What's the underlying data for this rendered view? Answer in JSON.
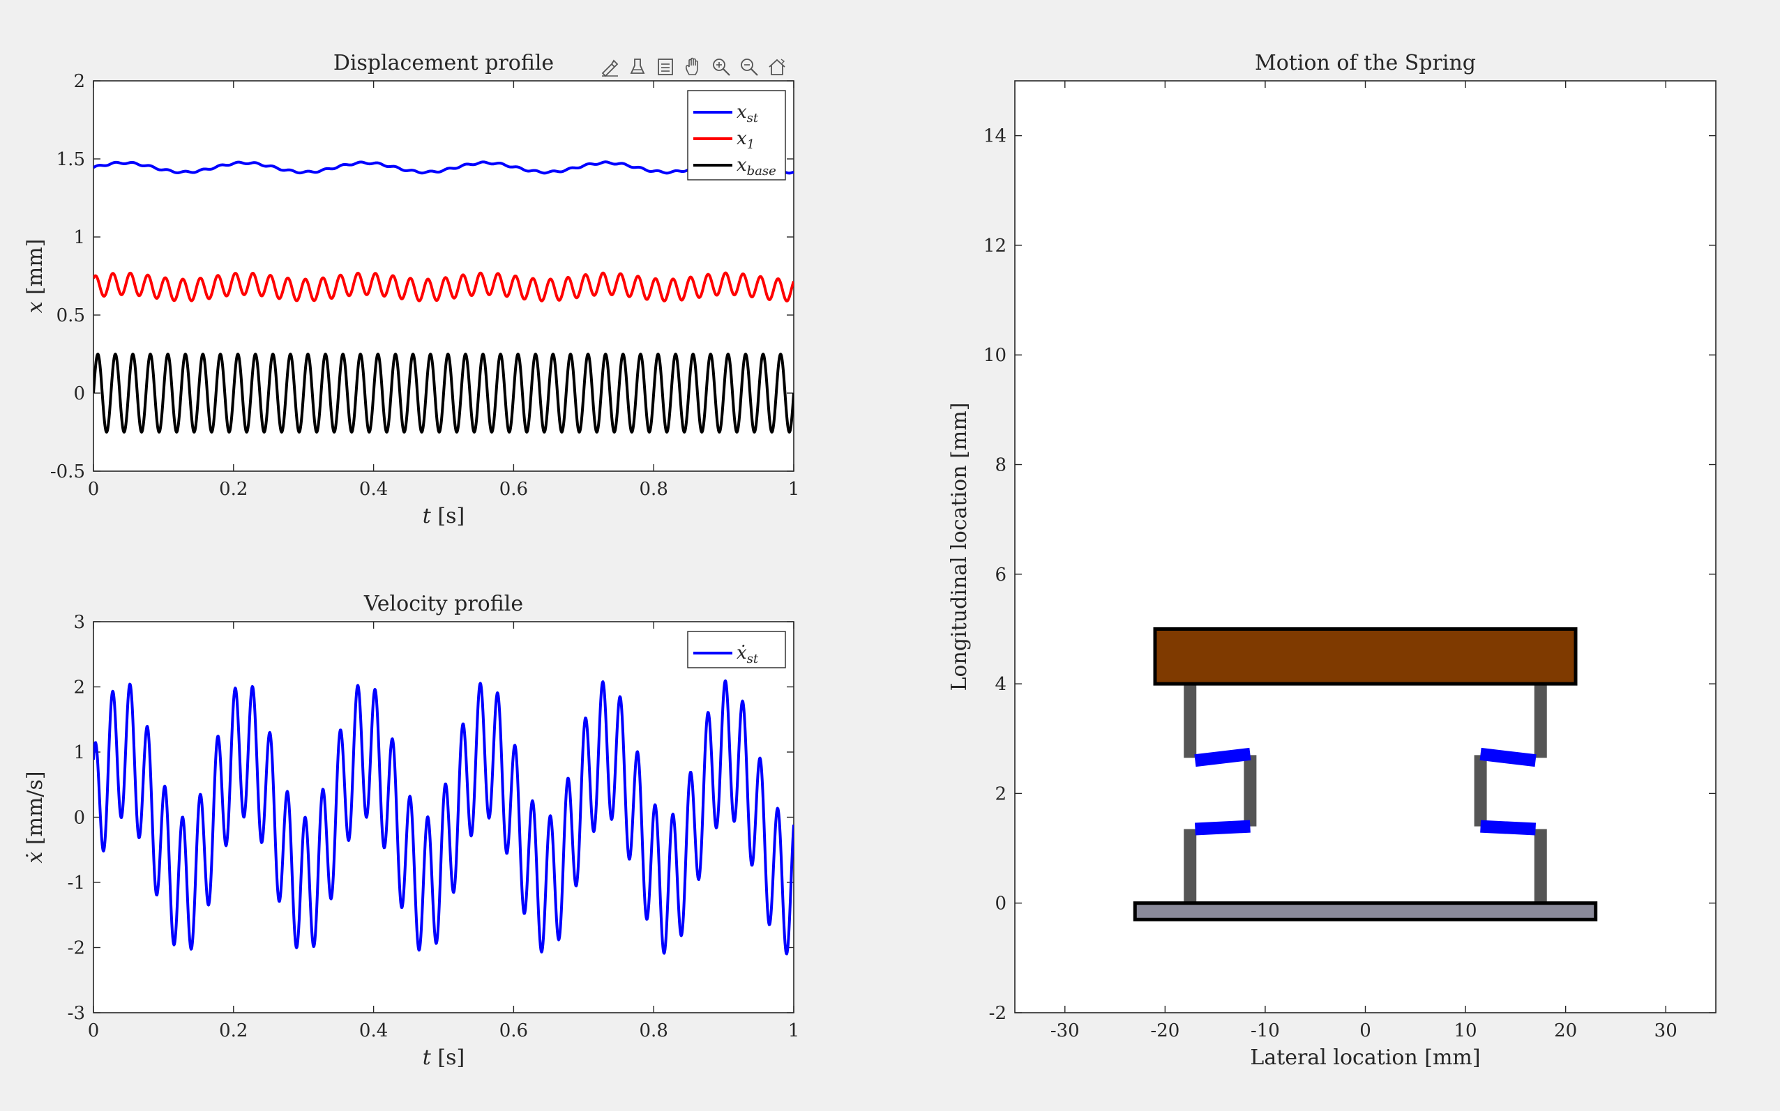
{
  "toolbar": {
    "icons": [
      "brush-icon",
      "data-tips-icon",
      "legend-icon",
      "pan-icon",
      "zoom-in-icon",
      "zoom-out-icon",
      "home-icon"
    ]
  },
  "chart_data": [
    {
      "type": "line",
      "title": "Displacement profile",
      "xlabel_var": "t",
      "xlabel_unit": "[s]",
      "ylabel_var": "x",
      "ylabel_unit": "[mm]",
      "xlim": [
        0,
        1
      ],
      "ylim": [
        -0.5,
        2
      ],
      "xticks": [
        0,
        0.2,
        0.4,
        0.6,
        0.8,
        1
      ],
      "xtick_labels": [
        "0",
        "0.2",
        "0.4",
        "0.6",
        "0.8",
        "1"
      ],
      "yticks": [
        -0.5,
        0,
        0.5,
        1,
        1.5,
        2
      ],
      "ytick_labels": [
        "-0.5",
        "0",
        "0.5",
        "1",
        "1.5",
        "2"
      ],
      "grid": false,
      "legend_position": "top-right",
      "series": [
        {
          "name_base": "x",
          "name_sub": "st",
          "color": "#0000ff",
          "model": {
            "offset": 1.445,
            "components": [
              {
                "amp": 0.03,
                "freq": 5.8,
                "phase": 0.0
              },
              {
                "amp": 0.006,
                "freq": 40,
                "phase": 0.0
              }
            ]
          }
        },
        {
          "name_base": "x",
          "name_sub": "1",
          "color": "#ff0000",
          "model": {
            "offset": 0.68,
            "components": [
              {
                "amp": 0.07,
                "freq": 40,
                "phase": 0.9
              },
              {
                "amp": 0.02,
                "freq": 5.8,
                "phase": 0.0
              }
            ]
          }
        },
        {
          "name_base": "x",
          "name_sub": "base",
          "color": "#000000",
          "model": {
            "offset": 0.0,
            "components": [
              {
                "amp": 0.25,
                "freq": 40,
                "phase": 0.0
              }
            ]
          }
        }
      ]
    },
    {
      "type": "line",
      "title": "Velocity profile",
      "xlabel_var": "t",
      "xlabel_unit": "[s]",
      "ylabel_var": "ẋ",
      "ylabel_unit": "[mm/s]",
      "xlim": [
        0,
        1
      ],
      "ylim": [
        -3,
        3
      ],
      "xticks": [
        0,
        0.2,
        0.4,
        0.6,
        0.8,
        1
      ],
      "xtick_labels": [
        "0",
        "0.2",
        "0.4",
        "0.6",
        "0.8",
        "1"
      ],
      "yticks": [
        -3,
        -2,
        -1,
        0,
        1,
        2,
        3
      ],
      "ytick_labels": [
        "-3",
        "-2",
        "-1",
        "0",
        "1",
        "2",
        "3"
      ],
      "grid": false,
      "legend_position": "top-right",
      "series": [
        {
          "name_base": "ẋ",
          "name_sub": "st",
          "color": "#0000ff",
          "model": {
            "offset": 0.0,
            "components": [
              {
                "amp": 1.05,
                "freq": 40,
                "phase": 1.0
              },
              {
                "amp": 1.05,
                "freq": 5.8,
                "phase": 0.0
              }
            ]
          }
        }
      ]
    },
    {
      "type": "diagram",
      "title": "Motion of the Spring",
      "xlabel": "Lateral location [mm]",
      "ylabel": "Longitudinal location [mm]",
      "xlim": [
        -35,
        35
      ],
      "ylim": [
        -2,
        15
      ],
      "xticks": [
        -30,
        -20,
        -10,
        0,
        10,
        20,
        30
      ],
      "xtick_labels": [
        "-30",
        "-20",
        "-10",
        "0",
        "10",
        "20",
        "30"
      ],
      "yticks": [
        -2,
        0,
        2,
        4,
        6,
        8,
        10,
        12,
        14
      ],
      "ytick_labels": [
        "-2",
        "0",
        "2",
        "4",
        "6",
        "8",
        "10",
        "12",
        "14"
      ],
      "colors": {
        "mass": "#7f3a00",
        "base": "#8a8a9a",
        "leg": "#555555",
        "spring": "#0000ff",
        "outline": "#000000"
      },
      "shapes": [
        {
          "kind": "rect",
          "role": "mass",
          "x0": -21,
          "y0": 4,
          "x1": 21,
          "y1": 5
        },
        {
          "kind": "rect",
          "role": "base",
          "x0": -23,
          "y0": -0.3,
          "x1": 23,
          "y1": 0
        },
        {
          "kind": "seg",
          "role": "leg",
          "x0": -17.5,
          "y0": 0,
          "x1": -17.5,
          "y1": 1.35
        },
        {
          "kind": "seg",
          "role": "leg",
          "x0": -17.5,
          "y0": 2.65,
          "x1": -17.5,
          "y1": 4
        },
        {
          "kind": "seg",
          "role": "leg",
          "x0": -11.5,
          "y0": 1.4,
          "x1": -11.5,
          "y1": 2.7
        },
        {
          "kind": "seg",
          "role": "leg",
          "x0": 17.5,
          "y0": 0,
          "x1": 17.5,
          "y1": 1.35
        },
        {
          "kind": "seg",
          "role": "leg",
          "x0": 17.5,
          "y0": 2.65,
          "x1": 17.5,
          "y1": 4
        },
        {
          "kind": "seg",
          "role": "leg",
          "x0": 11.5,
          "y0": 1.4,
          "x1": 11.5,
          "y1": 2.7
        },
        {
          "kind": "seg",
          "role": "spring",
          "x0": -17,
          "y0": 1.35,
          "x1": -11.5,
          "y1": 1.4
        },
        {
          "kind": "seg",
          "role": "spring",
          "x0": -17,
          "y0": 2.6,
          "x1": -11.5,
          "y1": 2.72
        },
        {
          "kind": "seg",
          "role": "spring",
          "x0": 11.5,
          "y0": 1.4,
          "x1": 17,
          "y1": 1.35
        },
        {
          "kind": "seg",
          "role": "spring",
          "x0": 11.5,
          "y0": 2.72,
          "x1": 17,
          "y1": 2.6
        }
      ]
    }
  ]
}
